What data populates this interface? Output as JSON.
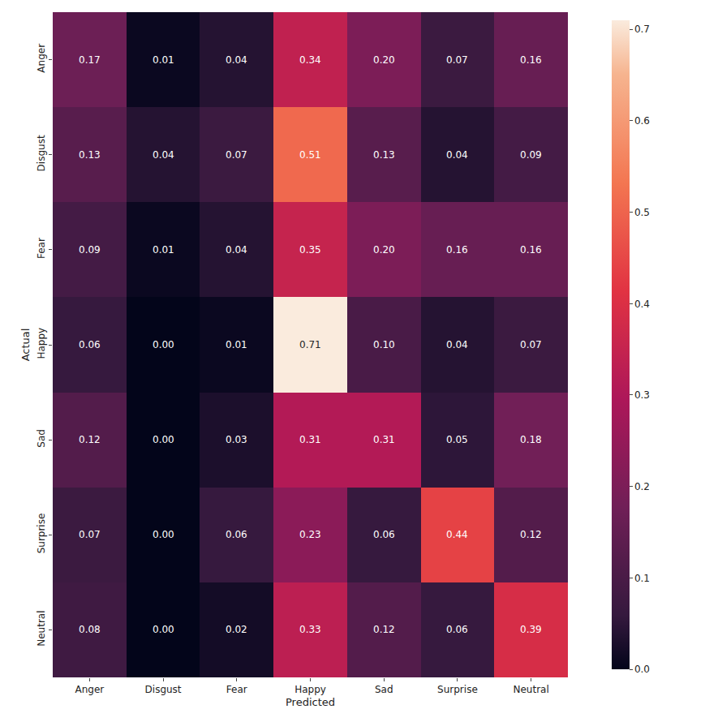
{
  "chart_data": {
    "type": "heatmap",
    "x_label": "Predicted",
    "y_label": "Actual",
    "x": [
      "Anger",
      "Disgust",
      "Fear",
      "Happy",
      "Sad",
      "Surprise",
      "Neutral"
    ],
    "y": [
      "Anger",
      "Disgust",
      "Fear",
      "Happy",
      "Sad",
      "Surprise",
      "Neutral"
    ],
    "cells": [
      [
        0.17,
        0.01,
        0.04,
        0.34,
        0.2,
        0.07,
        0.16
      ],
      [
        0.13,
        0.04,
        0.07,
        0.51,
        0.13,
        0.04,
        0.09
      ],
      [
        0.09,
        0.01,
        0.04,
        0.35,
        0.2,
        0.16,
        0.16
      ],
      [
        0.06,
        0.0,
        0.01,
        0.71,
        0.1,
        0.04,
        0.07
      ],
      [
        0.12,
        0.0,
        0.03,
        0.31,
        0.31,
        0.05,
        0.18
      ],
      [
        0.07,
        0.0,
        0.06,
        0.23,
        0.06,
        0.44,
        0.12
      ],
      [
        0.08,
        0.0,
        0.02,
        0.33,
        0.12,
        0.06,
        0.39
      ]
    ],
    "value_labels": [
      [
        "0.17",
        "0.01",
        "0.04",
        "0.34",
        "0.20",
        "0.07",
        "0.16"
      ],
      [
        "0.13",
        "0.04",
        "0.07",
        "0.51",
        "0.13",
        "0.04",
        "0.09"
      ],
      [
        "0.09",
        "0.01",
        "0.04",
        "0.35",
        "0.20",
        "0.16",
        "0.16"
      ],
      [
        "0.06",
        "0.00",
        "0.01",
        "0.71",
        "0.10",
        "0.04",
        "0.07"
      ],
      [
        "0.12",
        "0.00",
        "0.03",
        "0.31",
        "0.31",
        "0.05",
        "0.18"
      ],
      [
        "0.07",
        "0.00",
        "0.06",
        "0.23",
        "0.06",
        "0.44",
        "0.12"
      ],
      [
        "0.08",
        "0.00",
        "0.02",
        "0.33",
        "0.12",
        "0.06",
        "0.39"
      ]
    ],
    "data_labels": true,
    "color_range": [
      0,
      0.71
    ],
    "color_ticks": [
      {
        "value": 0,
        "label": "0.0"
      },
      0.1,
      0.2,
      0.3,
      0.4,
      0.5,
      0.6,
      0.7
    ],
    "grid": false
  }
}
